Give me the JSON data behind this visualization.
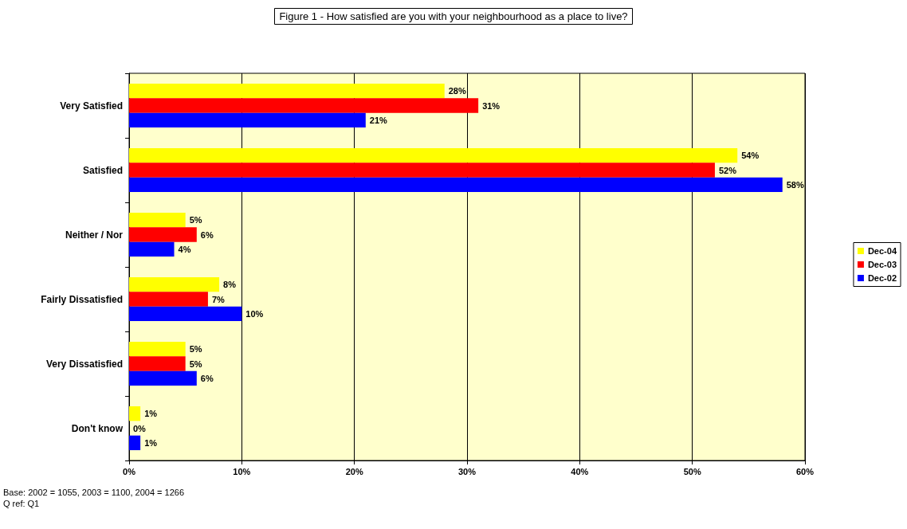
{
  "chart_data": {
    "type": "bar",
    "orientation": "horizontal",
    "title": "Figure 1 - How satisfied are you with your neighbourhood as a place to live?",
    "categories": [
      "Very Satisfied",
      "Satisfied",
      "Neither / Nor",
      "Fairly Dissatisfied",
      "Very Dissatisfied",
      "Don't know"
    ],
    "series": [
      {
        "name": "Dec-04",
        "color": "#ffff00",
        "values": [
          28,
          54,
          5,
          8,
          5,
          1
        ],
        "value_labels": [
          "28%",
          "54%",
          "5%",
          "8%",
          "5%",
          "1%"
        ]
      },
      {
        "name": "Dec-03",
        "color": "#ff0000",
        "values": [
          31,
          52,
          6,
          7,
          5,
          0
        ],
        "value_labels": [
          "31%",
          "52%",
          "6%",
          "7%",
          "5%",
          "0%"
        ]
      },
      {
        "name": "Dec-02",
        "color": "#0000ff",
        "values": [
          21,
          58,
          4,
          10,
          6,
          1
        ],
        "value_labels": [
          "21%",
          "58%",
          "4%",
          "10%",
          "6%",
          "1%"
        ]
      }
    ],
    "xlim": [
      0,
      60
    ],
    "xticks": [
      {
        "value": 0,
        "label": "0%"
      },
      {
        "value": 10,
        "label": "10%"
      },
      {
        "value": 20,
        "label": "20%"
      },
      {
        "value": 30,
        "label": "30%"
      },
      {
        "value": 40,
        "label": "40%"
      },
      {
        "value": 50,
        "label": "50%"
      },
      {
        "value": 60,
        "label": "60%"
      }
    ],
    "grid": "x",
    "legend": "right",
    "annotations": [
      "Base: 2002 = 1055, 2003 = 1100, 2004 = 1266",
      "Q ref: Q1"
    ]
  }
}
